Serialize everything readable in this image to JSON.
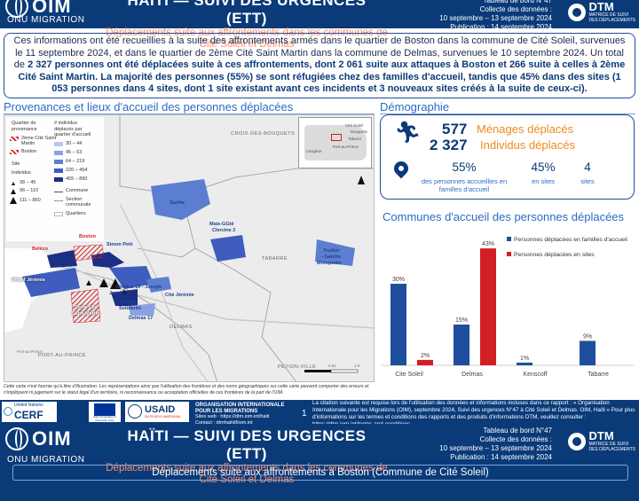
{
  "header": {
    "logo_text": "OIM",
    "logo_subtitle": "ONU MIGRATION",
    "title": "HAÏTI — SUIVI DES URGENCES (ETT)",
    "subtitle_line1": "Déplacements suite aux affrontements dans les communes de",
    "subtitle_line2": "Cité Soleil et Delmas",
    "meta_line1": "Tableau de bord N°47",
    "meta_line2": "Collecte des données :",
    "meta_line3": "10 septembre – 13 septembre 2024",
    "meta_line4": "Publication : 14 septembre 2024",
    "dtm_name": "DTM",
    "dtm_sub1": "MATRICE DE SUIVI",
    "dtm_sub2": "DES DÉPLACEMENTS"
  },
  "intro": {
    "part1": "Ces informations ont été recueillies à la suite des affrontements armés dans le quartier de Boston dans la commune de Cité Soleil, survenues le 11 septembre 2024, et dans le quartier de 2ème Cité Saint Martin dans la commune de Delmas, survenues le 10 septembre 2024. Un total de ",
    "bold1": "2 327 personnes ont été déplacées suite à ces affrontements, dont 2 061 suite aux attaques à Boston et 266 suite à celles à 2ème Cité Saint Martin. La majorité des personnes (55%) se sont réfugiées chez des familles d'accueil, tandis que 45% dans des sites (1 053 personnes dans 4 sites, dont 1 site existant avant ces incidents et 3 nouveaux sites créés à la suite de ceux-ci)."
  },
  "map_section": {
    "title": "Provenances et lieux d'accueil des personnes déplacées",
    "legend": {
      "origin_title_1": "Quartier de",
      "origin_title_2": "provenance",
      "origin_1": "2ème Cité Saint",
      "origin_1b": "Martin",
      "origin_2": "Boston",
      "site_title": "Site",
      "individus": "Individus",
      "tri_1": "38 – 45",
      "tri_2": "96 – 110",
      "tri_3": "111 – 860",
      "choro_title_1": "# individus",
      "choro_title_2": "déplacés par",
      "choro_title_3": "quartier d'accueil",
      "choro_1": "30 – 44",
      "choro_2": "45 – 63",
      "choro_3": "64 – 219",
      "choro_4": "220 – 454",
      "choro_5": "455 – 860",
      "commune": "Commune",
      "section": "Section",
      "section_b": "communale",
      "quartier": "Quartiers"
    },
    "labels": {
      "croix": "CROIX-DES-BOUQUETS",
      "tabarre": "TABARRE",
      "delmas": "DELMAS",
      "pap": "PORT-AU-PRINCE",
      "pap2": "Port-au-Prince",
      "petion": "PÉTION-VILLE",
      "sarthe": "Sarthe",
      "mais_gate": "Mais-GGté",
      "clercine": "Clercine 2",
      "truitier": "Truitier",
      "galette": "- Galette",
      "monquette": "Monquette",
      "simon_pele": "Simon Pelé",
      "boston": "Boston",
      "beleco": "Beléco",
      "wharf": "Wharf Jérémie",
      "delmas19": "Delmas 19 - Joseph",
      "janvier": "Janvier",
      "cite_jeremie": "Cité Jérémie",
      "cite_st_martin_1": "2ème Cité",
      "cite_st_martin_2": "Saint Martin",
      "village": "Village",
      "solidarite": "Solidarité",
      "delmas17": "Delmas 17",
      "inset_1": "Cité Soleil",
      "inset_2": "Bouquets",
      "inset_3": "Tabarre",
      "inset_4": "Port-au-Prince",
      "inset_5": "Léogâne",
      "scale_1": "0.94",
      "scale_2": "1.9"
    },
    "disclaimer": "Cette carte n'est fournie qu'à titre d'illustration. Les représentations ainsi que l'utilisation des frontières et des noms géographiques sur cette carte peuvent comporter des erreurs et n'impliquent ni jugement sur le statut légal d'un territoire, ni reconnaissance ou acceptation officielles de ces frontières de la part de l'OIM."
  },
  "demography": {
    "title": "Démographie",
    "households_value": "577",
    "households_label": "Ménages déplacés",
    "individuals_value": "2 327",
    "individuals_label": "Individus déplacés",
    "host_pct": "55%",
    "host_label_1": "des personnes accueillies en",
    "host_label_2": "familles d'accueil",
    "sites_pct": "45%",
    "sites_pct_label": "en sites",
    "sites_count": "4",
    "sites_count_label": "sites"
  },
  "chart_section": {
    "title": "Communes d'accueil des personnes déplacées"
  },
  "chart_data": {
    "type": "bar",
    "categories": [
      "Cite Soleil",
      "Delmas",
      "Kenscoff",
      "Tabarre"
    ],
    "series": [
      {
        "name": "Personnes déplacées en familles d'accueil",
        "values": [
          30,
          15,
          1,
          9
        ],
        "labels": [
          "30%",
          "15%",
          "1%",
          "9%"
        ],
        "color": "#1f4e9c"
      },
      {
        "name": "Personnes déplacées en sites",
        "values": [
          2,
          43,
          0,
          0
        ],
        "labels": [
          "2%",
          "43%",
          "",
          ""
        ],
        "color": "#d21f24"
      }
    ],
    "ylim": [
      0,
      45
    ]
  },
  "footer": {
    "usaid": "USAID",
    "usaid_sub": "DU PEUPLE AMÉRICAIN",
    "cerf": "CERF",
    "un": "United Nations",
    "aide": "Aide humanitaire et Protection civile",
    "iom_1": "ORGANISATION INTERNATIONALE",
    "iom_2": "POUR LES MIGRATIONS",
    "iom_3": "Sites web : https://dtm.iom.int/haiti",
    "iom_4": "Contact : dtmhaiti@iom.int",
    "page_num": "1",
    "cite": "La citation suivante est requise lors de l'utilisation des données et informations incluses dans ce rapport : « Organisation Internationale pour les Migrations (OIM), septembre 2024, Suivi des urgences N°47 à Cité Soleil et Delmas. OIM, Haïti » Pour plus d'informations sur les termes et conditions des rapports et des produits d'informations DTM, veuillez consulter : https://dtm.iom.int/terms-and-conditions"
  },
  "page2": {
    "subbar": "Déplacements suite aux affrontements à Boston (Commune de Cité Soleil)"
  }
}
